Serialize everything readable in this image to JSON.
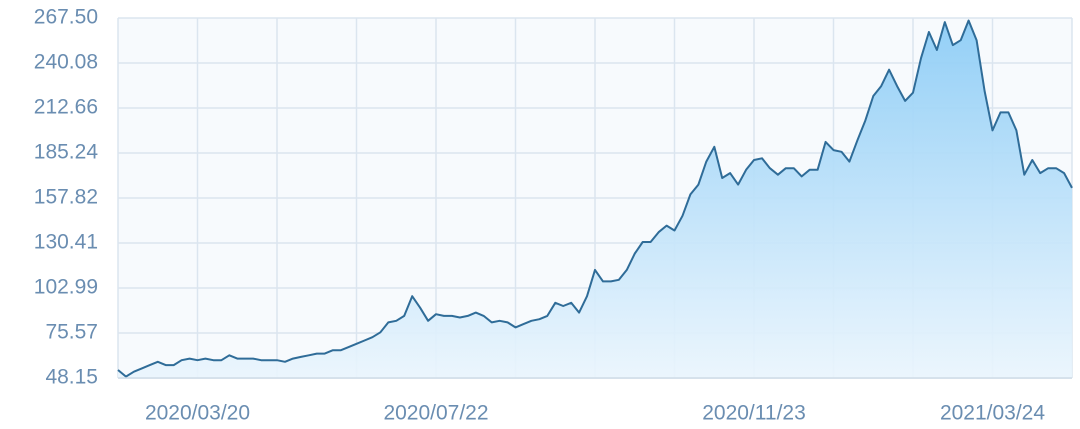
{
  "chart_data": {
    "type": "line",
    "categories": [
      null,
      null,
      null,
      null,
      null,
      null,
      null,
      null,
      null,
      null,
      "2020/03/20",
      null,
      null,
      null,
      null,
      null,
      null,
      null,
      null,
      null,
      null,
      null,
      null,
      null,
      null,
      null,
      null,
      null,
      null,
      null,
      null,
      null,
      null,
      null,
      null,
      null,
      null,
      null,
      null,
      null,
      "2020/07/22",
      null,
      null,
      null,
      null,
      null,
      null,
      null,
      null,
      null,
      null,
      null,
      null,
      null,
      null,
      null,
      null,
      null,
      null,
      null,
      null,
      null,
      null,
      null,
      null,
      null,
      null,
      null,
      null,
      null,
      null,
      null,
      null,
      null,
      null,
      null,
      null,
      null,
      null,
      null,
      "2020/11/23",
      null,
      null,
      null,
      null,
      null,
      null,
      null,
      null,
      null,
      null,
      null,
      null,
      null,
      null,
      null,
      null,
      null,
      null,
      null,
      null,
      null,
      null,
      null,
      null,
      null,
      null,
      null,
      null,
      null,
      "2021/03/24",
      null,
      null,
      null,
      null,
      null,
      null,
      null,
      null,
      null,
      null
    ],
    "series": [
      {
        "color": "#2f6c98",
        "values": [
          53,
          49,
          52,
          54,
          56,
          58,
          56,
          56,
          59,
          60,
          59,
          60,
          59,
          59,
          62,
          60,
          60,
          60,
          59,
          59,
          59,
          58,
          60,
          61,
          62,
          63,
          63,
          65,
          65,
          67,
          69,
          71,
          73,
          76,
          82,
          83,
          86,
          98,
          91,
          83,
          87,
          86,
          86,
          85,
          86,
          88,
          86,
          82,
          83,
          82,
          79,
          81,
          83,
          84,
          86,
          94,
          92,
          94,
          88,
          98,
          114,
          107,
          107,
          108,
          114,
          124,
          131,
          131,
          137,
          141,
          138,
          147,
          160,
          166,
          180,
          189,
          170,
          173,
          166,
          175,
          181,
          182,
          176,
          172,
          176,
          176,
          171,
          175,
          175,
          192,
          187,
          186,
          180,
          193,
          205,
          220,
          226,
          236,
          226,
          217,
          222,
          243,
          259,
          248,
          265,
          251,
          254,
          266,
          254,
          223,
          199,
          210,
          210,
          199,
          172,
          181,
          173,
          176,
          176,
          173,
          164
        ]
      }
    ],
    "ylim": [
      48.15,
      267.5
    ],
    "yticks": [
      48.15,
      75.57,
      102.99,
      130.41,
      157.82,
      185.24,
      212.66,
      240.08,
      {
        "value": 267.5,
        "label": "267.50"
      }
    ],
    "grid": true
  }
}
